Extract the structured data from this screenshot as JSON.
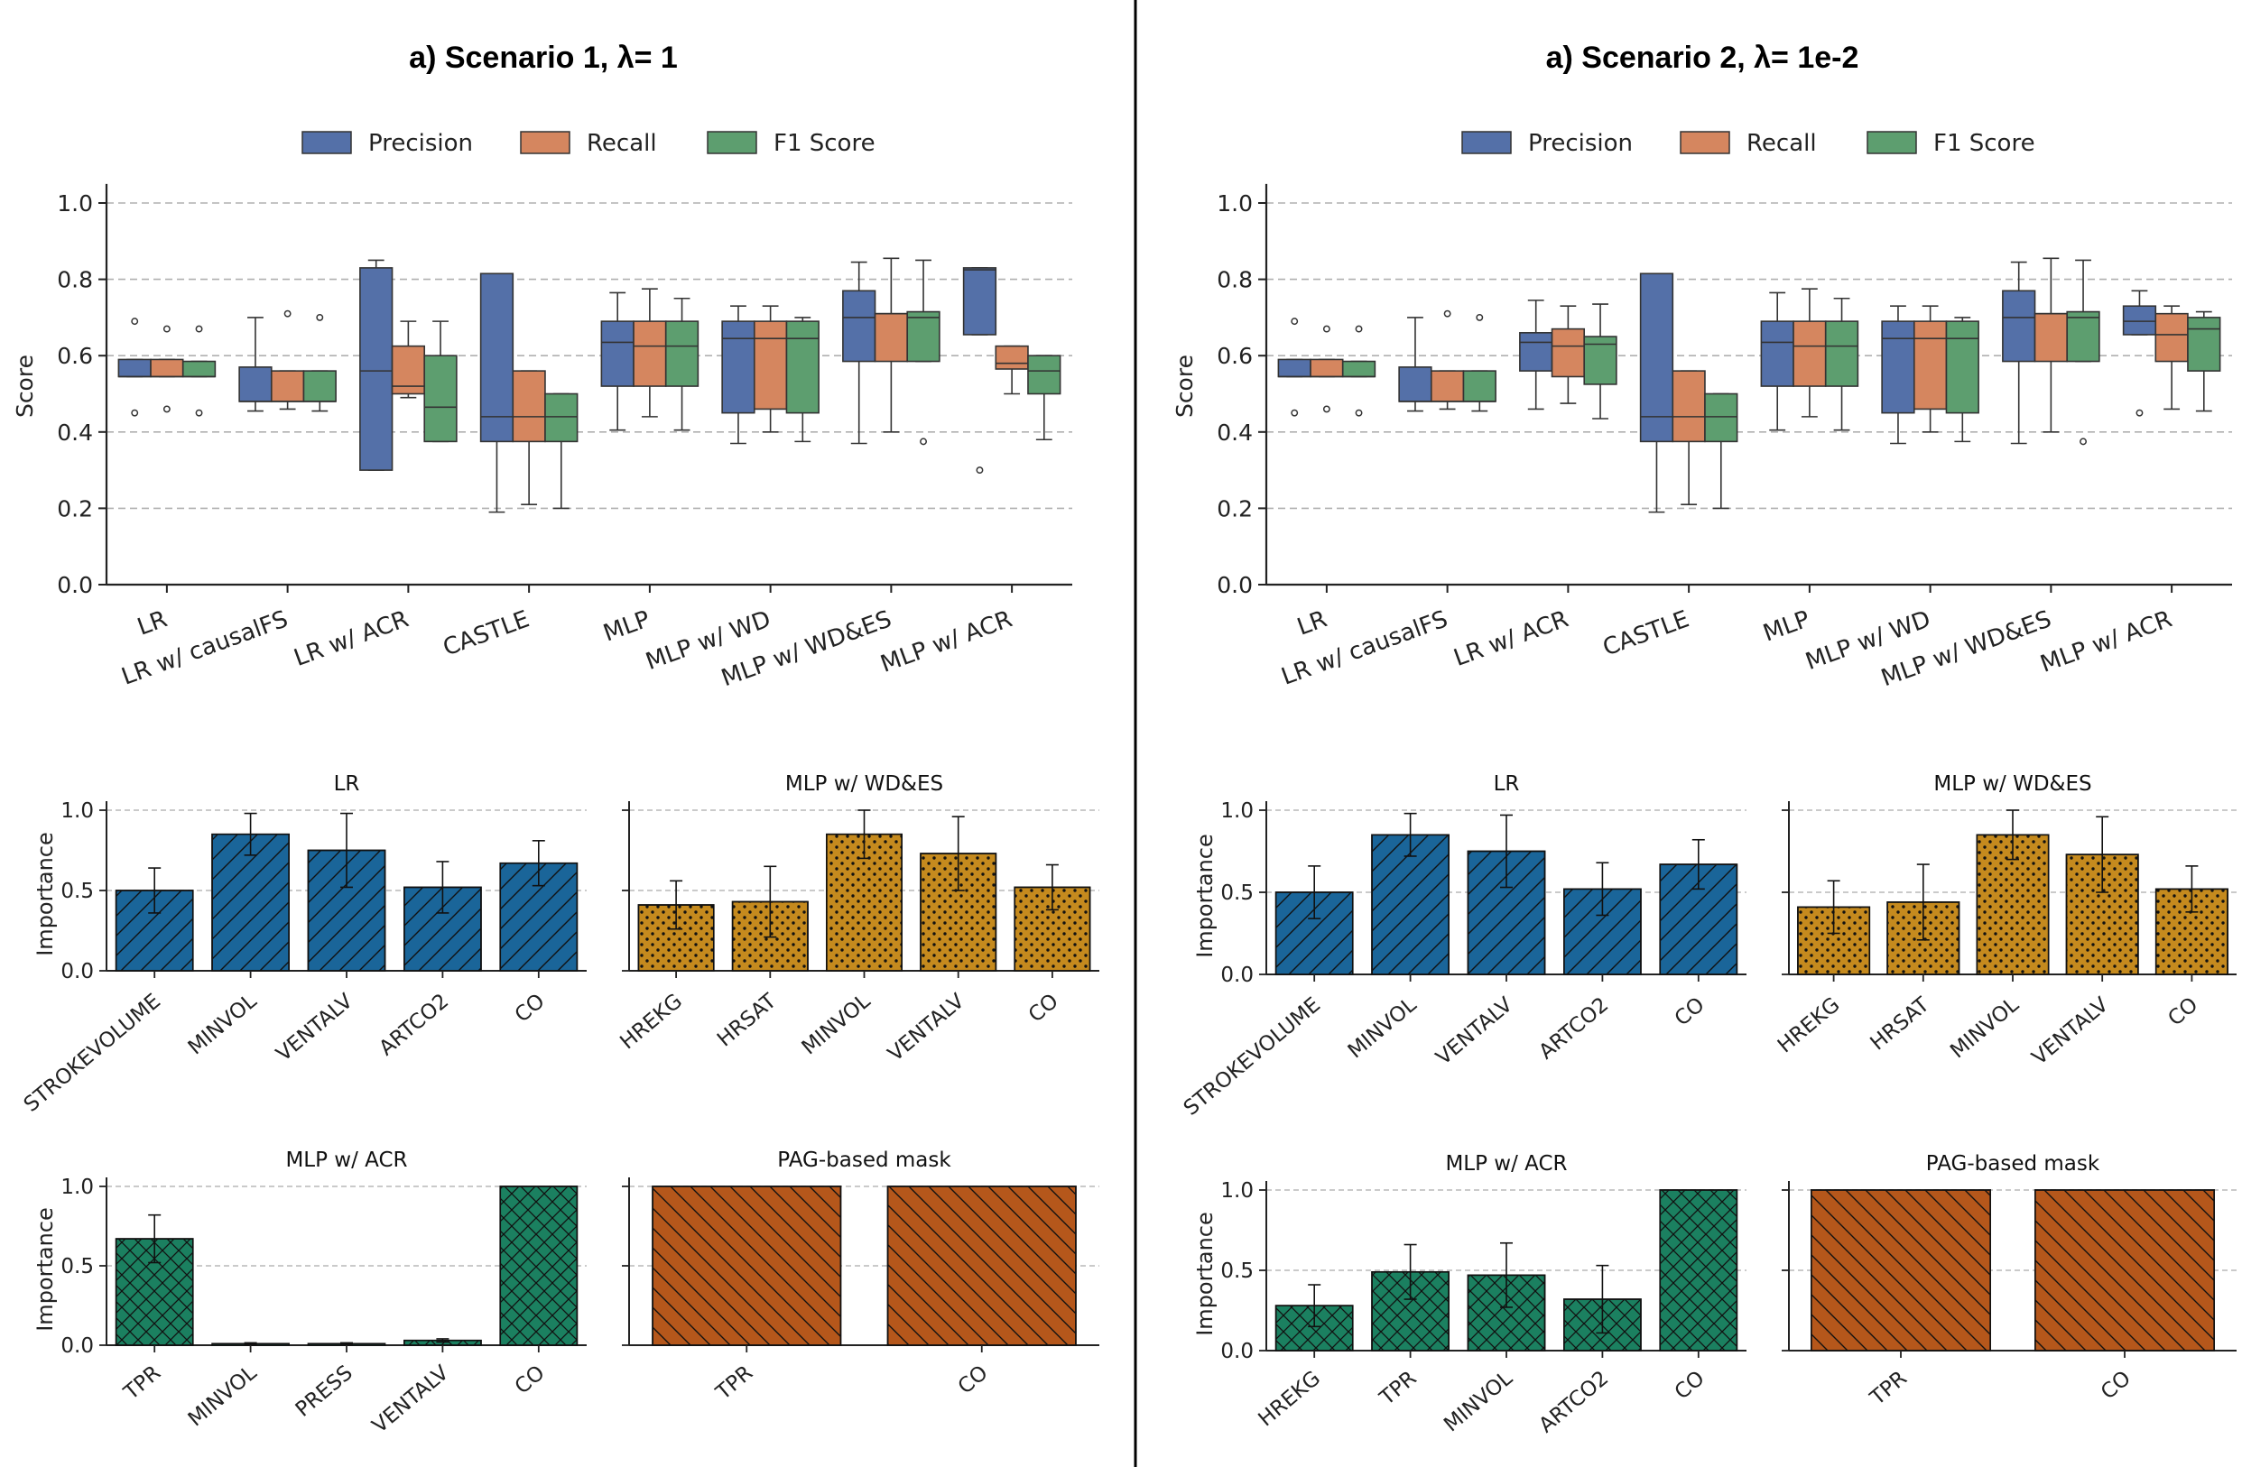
{
  "legend": {
    "items": [
      "Precision",
      "Recall",
      "F1 Score"
    ],
    "colors": [
      "#5470a8",
      "#d5865f",
      "#5d9e6f"
    ]
  },
  "chart_data": [
    {
      "type": "box",
      "title": "a) Scenario 1, λ= 1",
      "ylabel": "Score",
      "ylim": [
        0,
        1.05
      ],
      "yticks": [
        "0.0",
        "0.2",
        "0.4",
        "0.6",
        "0.8",
        "1.0"
      ],
      "categories": [
        "LR",
        "LR w/ causalFS",
        "LR w/ ACR",
        "CASTLE",
        "MLP",
        "MLP w/ WD",
        "MLP w/ WD&ES",
        "MLP w/ ACR"
      ],
      "series": [
        {
          "name": "Precision",
          "boxes": [
            {
              "q1": 0.545,
              "med": 0.545,
              "q3": 0.59,
              "lo": 0.545,
              "hi": 0.59,
              "fl": [
                0.45,
                0.69
              ]
            },
            {
              "q1": 0.48,
              "med": 0.48,
              "q3": 0.57,
              "lo": 0.455,
              "hi": 0.7,
              "fl": []
            },
            {
              "q1": 0.3,
              "med": 0.56,
              "q3": 0.83,
              "lo": 0.3,
              "hi": 0.85,
              "fl": []
            },
            {
              "q1": 0.375,
              "med": 0.44,
              "q3": 0.815,
              "lo": 0.19,
              "hi": 0.815,
              "fl": []
            },
            {
              "q1": 0.52,
              "med": 0.635,
              "q3": 0.69,
              "lo": 0.405,
              "hi": 0.765,
              "fl": []
            },
            {
              "q1": 0.45,
              "med": 0.645,
              "q3": 0.69,
              "lo": 0.37,
              "hi": 0.73,
              "fl": []
            },
            {
              "q1": 0.585,
              "med": 0.7,
              "q3": 0.77,
              "lo": 0.37,
              "hi": 0.845,
              "fl": []
            },
            {
              "q1": 0.655,
              "med": 0.825,
              "q3": 0.83,
              "lo": 0.655,
              "hi": 0.83,
              "fl": [
                0.3
              ]
            }
          ]
        },
        {
          "name": "Recall",
          "boxes": [
            {
              "q1": 0.545,
              "med": 0.545,
              "q3": 0.59,
              "lo": 0.545,
              "hi": 0.59,
              "fl": [
                0.46,
                0.67
              ]
            },
            {
              "q1": 0.48,
              "med": 0.48,
              "q3": 0.56,
              "lo": 0.46,
              "hi": 0.56,
              "fl": [
                0.71
              ]
            },
            {
              "q1": 0.5,
              "med": 0.52,
              "q3": 0.625,
              "lo": 0.49,
              "hi": 0.69,
              "fl": []
            },
            {
              "q1": 0.375,
              "med": 0.44,
              "q3": 0.56,
              "lo": 0.21,
              "hi": 0.56,
              "fl": []
            },
            {
              "q1": 0.52,
              "med": 0.625,
              "q3": 0.69,
              "lo": 0.44,
              "hi": 0.775,
              "fl": []
            },
            {
              "q1": 0.46,
              "med": 0.645,
              "q3": 0.69,
              "lo": 0.4,
              "hi": 0.73,
              "fl": []
            },
            {
              "q1": 0.585,
              "med": 0.71,
              "q3": 0.71,
              "lo": 0.4,
              "hi": 0.855,
              "fl": []
            },
            {
              "q1": 0.565,
              "med": 0.58,
              "q3": 0.625,
              "lo": 0.5,
              "hi": 0.625,
              "fl": []
            }
          ]
        },
        {
          "name": "F1 Score",
          "boxes": [
            {
              "q1": 0.545,
              "med": 0.545,
              "q3": 0.585,
              "lo": 0.545,
              "hi": 0.585,
              "fl": [
                0.45,
                0.67
              ]
            },
            {
              "q1": 0.48,
              "med": 0.48,
              "q3": 0.56,
              "lo": 0.455,
              "hi": 0.56,
              "fl": [
                0.7
              ]
            },
            {
              "q1": 0.375,
              "med": 0.465,
              "q3": 0.6,
              "lo": 0.375,
              "hi": 0.69,
              "fl": []
            },
            {
              "q1": 0.375,
              "med": 0.44,
              "q3": 0.5,
              "lo": 0.2,
              "hi": 0.5,
              "fl": []
            },
            {
              "q1": 0.52,
              "med": 0.625,
              "q3": 0.69,
              "lo": 0.405,
              "hi": 0.75,
              "fl": []
            },
            {
              "q1": 0.45,
              "med": 0.645,
              "q3": 0.69,
              "lo": 0.375,
              "hi": 0.7,
              "fl": []
            },
            {
              "q1": 0.585,
              "med": 0.7,
              "q3": 0.715,
              "lo": 0.585,
              "hi": 0.85,
              "fl": [
                0.375
              ]
            },
            {
              "q1": 0.5,
              "med": 0.56,
              "q3": 0.6,
              "lo": 0.38,
              "hi": 0.6,
              "fl": []
            }
          ]
        }
      ]
    },
    {
      "type": "box",
      "title": "a) Scenario 2, λ= 1e-2",
      "ylabel": "Score",
      "ylim": [
        0,
        1.05
      ],
      "yticks": [
        "0.0",
        "0.2",
        "0.4",
        "0.6",
        "0.8",
        "1.0"
      ],
      "categories": [
        "LR",
        "LR w/ causalFS",
        "LR w/ ACR",
        "CASTLE",
        "MLP",
        "MLP w/ WD",
        "MLP w/ WD&ES",
        "MLP w/ ACR"
      ],
      "series": [
        {
          "name": "Precision",
          "boxes": [
            {
              "q1": 0.545,
              "med": 0.545,
              "q3": 0.59,
              "lo": 0.545,
              "hi": 0.59,
              "fl": [
                0.45,
                0.69
              ]
            },
            {
              "q1": 0.48,
              "med": 0.48,
              "q3": 0.57,
              "lo": 0.455,
              "hi": 0.7,
              "fl": []
            },
            {
              "q1": 0.56,
              "med": 0.635,
              "q3": 0.66,
              "lo": 0.46,
              "hi": 0.745,
              "fl": []
            },
            {
              "q1": 0.375,
              "med": 0.44,
              "q3": 0.815,
              "lo": 0.19,
              "hi": 0.815,
              "fl": []
            },
            {
              "q1": 0.52,
              "med": 0.635,
              "q3": 0.69,
              "lo": 0.405,
              "hi": 0.765,
              "fl": []
            },
            {
              "q1": 0.45,
              "med": 0.645,
              "q3": 0.69,
              "lo": 0.37,
              "hi": 0.73,
              "fl": []
            },
            {
              "q1": 0.585,
              "med": 0.7,
              "q3": 0.77,
              "lo": 0.37,
              "hi": 0.845,
              "fl": []
            },
            {
              "q1": 0.655,
              "med": 0.69,
              "q3": 0.73,
              "lo": 0.655,
              "hi": 0.77,
              "fl": [
                0.45
              ]
            }
          ]
        },
        {
          "name": "Recall",
          "boxes": [
            {
              "q1": 0.545,
              "med": 0.545,
              "q3": 0.59,
              "lo": 0.545,
              "hi": 0.59,
              "fl": [
                0.46,
                0.67
              ]
            },
            {
              "q1": 0.48,
              "med": 0.48,
              "q3": 0.56,
              "lo": 0.46,
              "hi": 0.56,
              "fl": [
                0.71
              ]
            },
            {
              "q1": 0.545,
              "med": 0.625,
              "q3": 0.67,
              "lo": 0.475,
              "hi": 0.73,
              "fl": []
            },
            {
              "q1": 0.375,
              "med": 0.44,
              "q3": 0.56,
              "lo": 0.21,
              "hi": 0.56,
              "fl": []
            },
            {
              "q1": 0.52,
              "med": 0.625,
              "q3": 0.69,
              "lo": 0.44,
              "hi": 0.775,
              "fl": []
            },
            {
              "q1": 0.46,
              "med": 0.645,
              "q3": 0.69,
              "lo": 0.4,
              "hi": 0.73,
              "fl": []
            },
            {
              "q1": 0.585,
              "med": 0.71,
              "q3": 0.71,
              "lo": 0.4,
              "hi": 0.855,
              "fl": []
            },
            {
              "q1": 0.585,
              "med": 0.655,
              "q3": 0.71,
              "lo": 0.46,
              "hi": 0.73,
              "fl": []
            }
          ]
        },
        {
          "name": "F1 Score",
          "boxes": [
            {
              "q1": 0.545,
              "med": 0.545,
              "q3": 0.585,
              "lo": 0.545,
              "hi": 0.585,
              "fl": [
                0.45,
                0.67
              ]
            },
            {
              "q1": 0.48,
              "med": 0.48,
              "q3": 0.56,
              "lo": 0.455,
              "hi": 0.56,
              "fl": [
                0.7
              ]
            },
            {
              "q1": 0.525,
              "med": 0.63,
              "q3": 0.65,
              "lo": 0.435,
              "hi": 0.735,
              "fl": []
            },
            {
              "q1": 0.375,
              "med": 0.44,
              "q3": 0.5,
              "lo": 0.2,
              "hi": 0.5,
              "fl": []
            },
            {
              "q1": 0.52,
              "med": 0.625,
              "q3": 0.69,
              "lo": 0.405,
              "hi": 0.75,
              "fl": []
            },
            {
              "q1": 0.45,
              "med": 0.645,
              "q3": 0.69,
              "lo": 0.375,
              "hi": 0.7,
              "fl": []
            },
            {
              "q1": 0.585,
              "med": 0.7,
              "q3": 0.715,
              "lo": 0.585,
              "hi": 0.85,
              "fl": [
                0.375
              ]
            },
            {
              "q1": 0.56,
              "med": 0.67,
              "q3": 0.7,
              "lo": 0.455,
              "hi": 0.715,
              "fl": []
            }
          ]
        }
      ]
    },
    {
      "type": "bar",
      "title": "LR",
      "ylabel": "Importance",
      "ylim": [
        0,
        1.0
      ],
      "yticks": [
        "0.0",
        "0.5",
        "1.0"
      ],
      "color": "#1a6599",
      "hatch": "diag",
      "categories": [
        "STROKEVOLUME",
        "MINVOL",
        "VENTALV",
        "ARTCO2",
        "CO"
      ],
      "values": [
        0.5,
        0.85,
        0.75,
        0.52,
        0.67
      ],
      "errors": [
        0.14,
        0.13,
        0.23,
        0.16,
        0.14
      ]
    },
    {
      "type": "bar",
      "title": "MLP w/ WD&ES",
      "ylabel": "",
      "ylim": [
        0,
        1.0
      ],
      "yticks": [
        "0.0",
        "0.5",
        "1.0"
      ],
      "color": "#c58a1e",
      "hatch": "dots",
      "categories": [
        "HREKG",
        "HRSAT",
        "MINVOL",
        "VENTALV",
        "CO"
      ],
      "values": [
        0.41,
        0.43,
        0.85,
        0.73,
        0.52
      ],
      "errors": [
        0.15,
        0.22,
        0.15,
        0.23,
        0.14
      ]
    },
    {
      "type": "bar",
      "title": "MLP w/ ACR",
      "ylabel": "Importance",
      "ylim": [
        0,
        1.0
      ],
      "yticks": [
        "0.0",
        "0.5",
        "1.0"
      ],
      "color": "#1b8060",
      "hatch": "cross",
      "categories": [
        "TPR",
        "MINVOL",
        "PRESS",
        "VENTALV",
        "CO"
      ],
      "values": [
        0.67,
        0.01,
        0.01,
        0.03,
        1.0
      ],
      "errors": [
        0.15,
        0.005,
        0.005,
        0.01,
        0
      ]
    },
    {
      "type": "bar",
      "title": "PAG-based mask",
      "ylabel": "",
      "ylim": [
        0,
        1.0
      ],
      "yticks": [
        "0.0",
        "0.5",
        "1.0"
      ],
      "color": "#b5571b",
      "hatch": "back",
      "categories": [
        "TPR",
        "CO"
      ],
      "values": [
        1.0,
        1.0
      ],
      "errors": [
        0,
        0
      ]
    },
    {
      "type": "bar",
      "title": "LR",
      "ylabel": "Importance",
      "ylim": [
        0,
        1.0
      ],
      "yticks": [
        "0.0",
        "0.5",
        "1.0"
      ],
      "color": "#1a6599",
      "hatch": "diag",
      "categories": [
        "STROKEVOLUME",
        "MINVOL",
        "VENTALV",
        "ARTCO2",
        "CO"
      ],
      "values": [
        0.5,
        0.85,
        0.75,
        0.52,
        0.67
      ],
      "errors": [
        0.16,
        0.13,
        0.22,
        0.16,
        0.15
      ]
    },
    {
      "type": "bar",
      "title": "MLP w/ WD&ES",
      "ylabel": "",
      "ylim": [
        0,
        1.0
      ],
      "yticks": [
        "0.0",
        "0.5",
        "1.0"
      ],
      "color": "#c58a1e",
      "hatch": "dots",
      "categories": [
        "HREKG",
        "HRSAT",
        "MINVOL",
        "VENTALV",
        "CO"
      ],
      "values": [
        0.41,
        0.44,
        0.85,
        0.73,
        0.52
      ],
      "errors": [
        0.16,
        0.23,
        0.15,
        0.23,
        0.14
      ]
    },
    {
      "type": "bar",
      "title": "MLP w/ ACR",
      "ylabel": "Importance",
      "ylim": [
        0,
        1.0
      ],
      "yticks": [
        "0.0",
        "0.5",
        "1.0"
      ],
      "color": "#1b8060",
      "hatch": "cross",
      "categories": [
        "HREKG",
        "TPR",
        "MINVOL",
        "ARTCO2",
        "CO"
      ],
      "values": [
        0.28,
        0.49,
        0.47,
        0.32,
        1.0
      ],
      "errors": [
        0.13,
        0.17,
        0.2,
        0.21,
        0
      ]
    },
    {
      "type": "bar",
      "title": "PAG-based mask",
      "ylabel": "",
      "ylim": [
        0,
        1.0
      ],
      "yticks": [
        "0.0",
        "0.5",
        "1.0"
      ],
      "color": "#b5571b",
      "hatch": "back",
      "categories": [
        "TPR",
        "CO"
      ],
      "values": [
        1.0,
        1.0
      ],
      "errors": [
        0,
        0
      ]
    }
  ]
}
